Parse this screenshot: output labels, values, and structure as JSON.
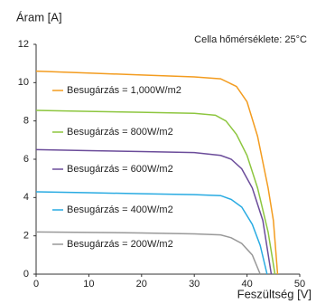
{
  "chart_data": {
    "type": "line",
    "y_label": "Áram [A]",
    "x_label": "Feszültség [V]",
    "annotation": "Cella hőmérséklete: 25°C",
    "xlim": [
      0,
      50
    ],
    "xticks": [
      0,
      10,
      20,
      30,
      40,
      50
    ],
    "ylim": [
      0,
      12
    ],
    "yticks": [
      0,
      2,
      4,
      6,
      8,
      10,
      12
    ],
    "series": [
      {
        "name": "Besugárzás = 1,000W/m2",
        "color": "#f39c1f",
        "x": [
          0,
          10,
          20,
          30,
          35,
          38,
          40,
          42,
          44,
          45,
          45.8
        ],
        "values": [
          10.6,
          10.5,
          10.4,
          10.3,
          10.2,
          9.8,
          9.0,
          7.2,
          4.5,
          2.8,
          0
        ]
      },
      {
        "name": "Besugárzás = 800W/m2",
        "color": "#8dc63f",
        "x": [
          0,
          10,
          20,
          30,
          34,
          36,
          38,
          40,
          42,
          44,
          45.3
        ],
        "values": [
          8.55,
          8.5,
          8.45,
          8.4,
          8.3,
          8.0,
          7.3,
          6.2,
          4.5,
          2.2,
          0
        ]
      },
      {
        "name": "Besugárzás = 600W/m2",
        "color": "#6b4c9a",
        "x": [
          0,
          10,
          20,
          30,
          35,
          37,
          39,
          41,
          43,
          44.6
        ],
        "values": [
          6.5,
          6.45,
          6.4,
          6.35,
          6.2,
          6.0,
          5.5,
          4.5,
          2.8,
          0
        ]
      },
      {
        "name": "Besugárzás = 400W/m2",
        "color": "#29abe2",
        "x": [
          0,
          10,
          20,
          30,
          35,
          37,
          39,
          41,
          42.5,
          43.8
        ],
        "values": [
          4.3,
          4.25,
          4.2,
          4.15,
          4.1,
          3.9,
          3.5,
          2.6,
          1.5,
          0
        ]
      },
      {
        "name": "Besugárzás = 200W/m2",
        "color": "#999999",
        "x": [
          0,
          10,
          20,
          30,
          35,
          37,
          39,
          41,
          42.5
        ],
        "values": [
          2.2,
          2.18,
          2.15,
          2.1,
          2.05,
          1.9,
          1.6,
          1.0,
          0
        ]
      }
    ]
  }
}
